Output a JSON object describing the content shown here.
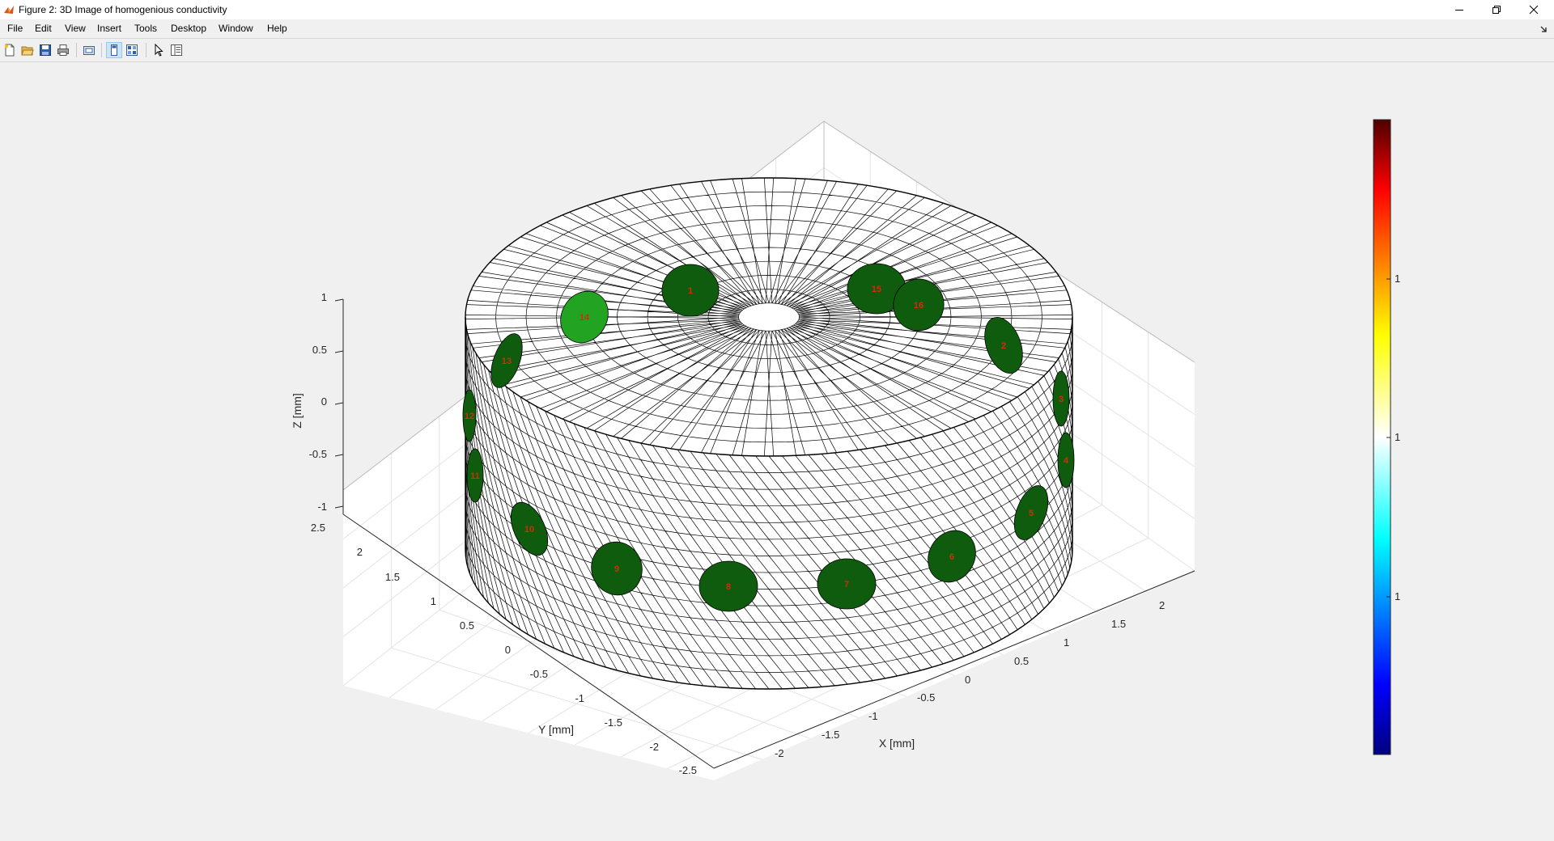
{
  "window": {
    "title": "Figure 2: 3D Image of homogenious conductivity",
    "controls": [
      "minimize",
      "restore",
      "close"
    ]
  },
  "menu": {
    "items": [
      "File",
      "Edit",
      "View",
      "Insert",
      "Tools",
      "Desktop",
      "Window",
      "Help"
    ]
  },
  "toolbar": {
    "buttons": [
      {
        "name": "new-figure-icon"
      },
      {
        "name": "open-file-icon"
      },
      {
        "name": "save-icon"
      },
      {
        "name": "print-icon"
      },
      {
        "name": "link-plot-icon"
      },
      {
        "name": "hide-plot-tools-icon",
        "active": true
      },
      {
        "name": "show-plot-tools-icon"
      },
      {
        "name": "edit-plot-arrow-icon"
      },
      {
        "name": "property-inspector-icon"
      }
    ]
  },
  "plot": {
    "z_axis": {
      "label": "Z [mm]",
      "ticks": [
        "1",
        "0.5",
        "0",
        "-0.5",
        "-1"
      ]
    },
    "y_axis": {
      "label": "Y [mm]",
      "ticks": [
        "2.5",
        "2",
        "1.5",
        "1",
        "0.5",
        "0",
        "-0.5",
        "-1",
        "-1.5",
        "-2",
        "-2.5"
      ]
    },
    "x_axis": {
      "label": "X [mm]",
      "ticks": [
        "-2",
        "-1.5",
        "-1",
        "-0.5",
        "0",
        "0.5",
        "1",
        "1.5",
        "2"
      ]
    },
    "electrode_labels": [
      "1",
      "2",
      "3",
      "4",
      "5",
      "6",
      "7",
      "8",
      "9",
      "10",
      "11",
      "12",
      "13",
      "14",
      "15",
      "16"
    ],
    "colorbar": {
      "tick_labels": [
        "1",
        "1",
        "1"
      ]
    },
    "colors": {
      "mesh_line": "#000000",
      "mesh_fill": "#ffffff",
      "electrode_fill": "#0f5c0f",
      "electrode_highlight": "#22a322",
      "electrode_label": "#d62a0a",
      "grid": "#e3e3e3"
    }
  }
}
